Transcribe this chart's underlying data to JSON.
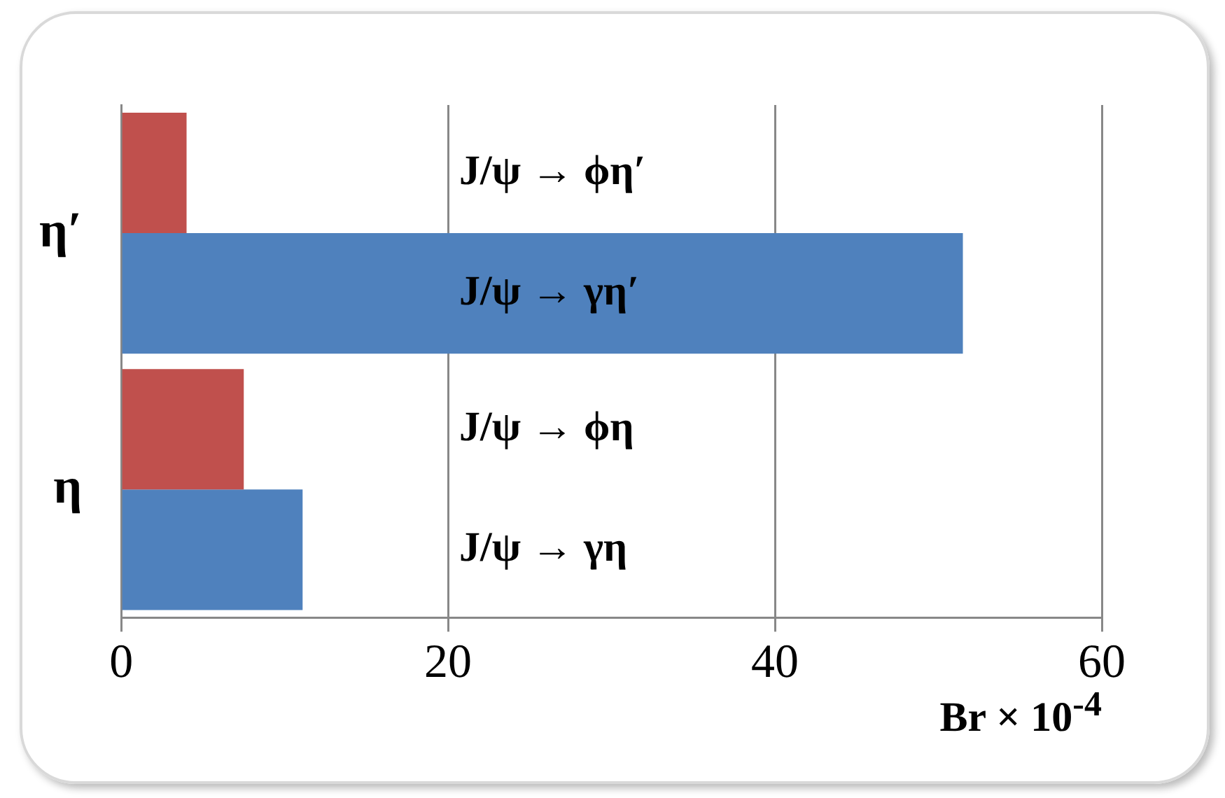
{
  "chart_data": {
    "type": "bar",
    "orientation": "horizontal",
    "categories": [
      "η′",
      "η"
    ],
    "series": [
      {
        "color": "#c0504d",
        "values": [
          4.0,
          7.5
        ]
      },
      {
        "color": "#4f81bd",
        "values": [
          51.5,
          11.1
        ]
      }
    ],
    "xlim": [
      0,
      60
    ],
    "xticks": [
      0,
      20,
      40,
      60
    ],
    "grid": "x",
    "legend": false,
    "xlabel": "Br × 10$^{-4}$",
    "annotations": [
      "J/ψ → ϕη′",
      "J/ψ → γη′",
      "J/ψ → ϕη",
      "J/ψ → γη"
    ]
  }
}
